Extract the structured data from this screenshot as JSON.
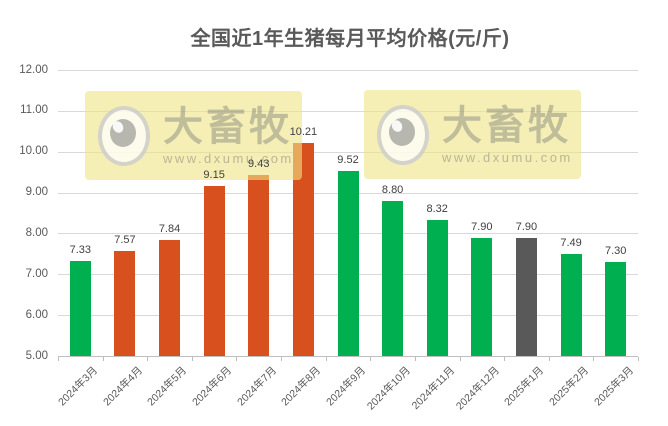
{
  "title": "全国近1年生猪每月平均价格(元/斤)",
  "watermark": {
    "brand": "大畜牧",
    "url": "www.dxumu.com"
  },
  "chart_data": {
    "type": "bar",
    "title": "全国近1年生猪每月平均价格(元/斤)",
    "categories": [
      "2024年3月",
      "2024年4月",
      "2024年5月",
      "2024年6月",
      "2024年7月",
      "2024年8月",
      "2024年9月",
      "2024年10月",
      "2024年11月",
      "2024年12月",
      "2025年1月",
      "2025年2月",
      "2025年3月"
    ],
    "values": [
      7.33,
      7.57,
      7.84,
      9.15,
      9.43,
      10.21,
      9.52,
      8.8,
      8.32,
      7.9,
      7.9,
      7.49,
      7.3
    ],
    "data_labels": [
      "7.33",
      "7.57",
      "7.84",
      "9.15",
      "9.43",
      "10.21",
      "9.52",
      "8.80",
      "8.32",
      "7.90",
      "7.90",
      "7.49",
      "7.30"
    ],
    "bar_colors": [
      "green",
      "orange",
      "orange",
      "orange",
      "orange",
      "orange",
      "green",
      "green",
      "green",
      "green",
      "gray",
      "green",
      "green"
    ],
    "palette": {
      "green": "#00b050",
      "orange": "#d9501f",
      "gray": "#595959"
    },
    "ylim": [
      5,
      12
    ],
    "ytick_step": 1,
    "yticks": [
      "5.00",
      "6.00",
      "7.00",
      "8.00",
      "9.00",
      "10.00",
      "11.00",
      "12.00"
    ],
    "xlabel": "",
    "ylabel": "",
    "grid": true,
    "legend": "none",
    "gridline_color": "#d9d9d9",
    "axis_color": "#bfbfbf",
    "title_color": "#595959",
    "label_color": "#404040"
  }
}
